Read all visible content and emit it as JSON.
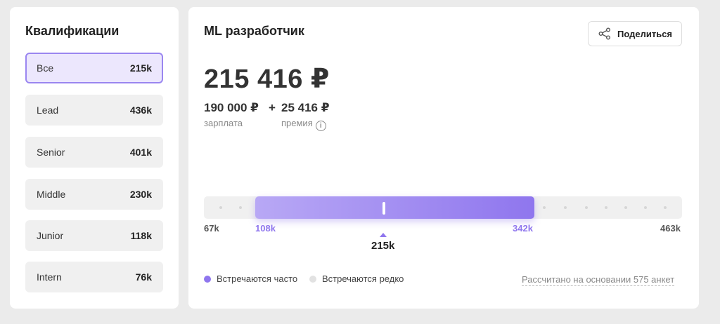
{
  "sidebar": {
    "title": "Квалификации",
    "items": [
      {
        "label": "Все",
        "value": "215k",
        "active": true
      },
      {
        "label": "Lead",
        "value": "436k"
      },
      {
        "label": "Senior",
        "value": "401k"
      },
      {
        "label": "Middle",
        "value": "230k"
      },
      {
        "label": "Junior",
        "value": "118k"
      },
      {
        "label": "Intern",
        "value": "76k"
      }
    ]
  },
  "main": {
    "title": "ML разработчик",
    "share_label": "Поделиться",
    "total": "215 416 ₽",
    "salary_value": "190 000 ₽",
    "salary_label": "зарплата",
    "plus": "+",
    "bonus_value": "25 416 ₽",
    "bonus_label": "премия",
    "range": {
      "min_label": "67k",
      "low_label": "108k",
      "high_label": "342k",
      "max_label": "463k",
      "median_label": "215k"
    },
    "legend": {
      "frequent": "Встречаются часто",
      "rare": "Встречаются редко",
      "frequent_color": "#8f76ee",
      "rare_color": "#e2e2e2"
    },
    "basis_text": "Рассчитано на основании 575 анкет"
  }
}
